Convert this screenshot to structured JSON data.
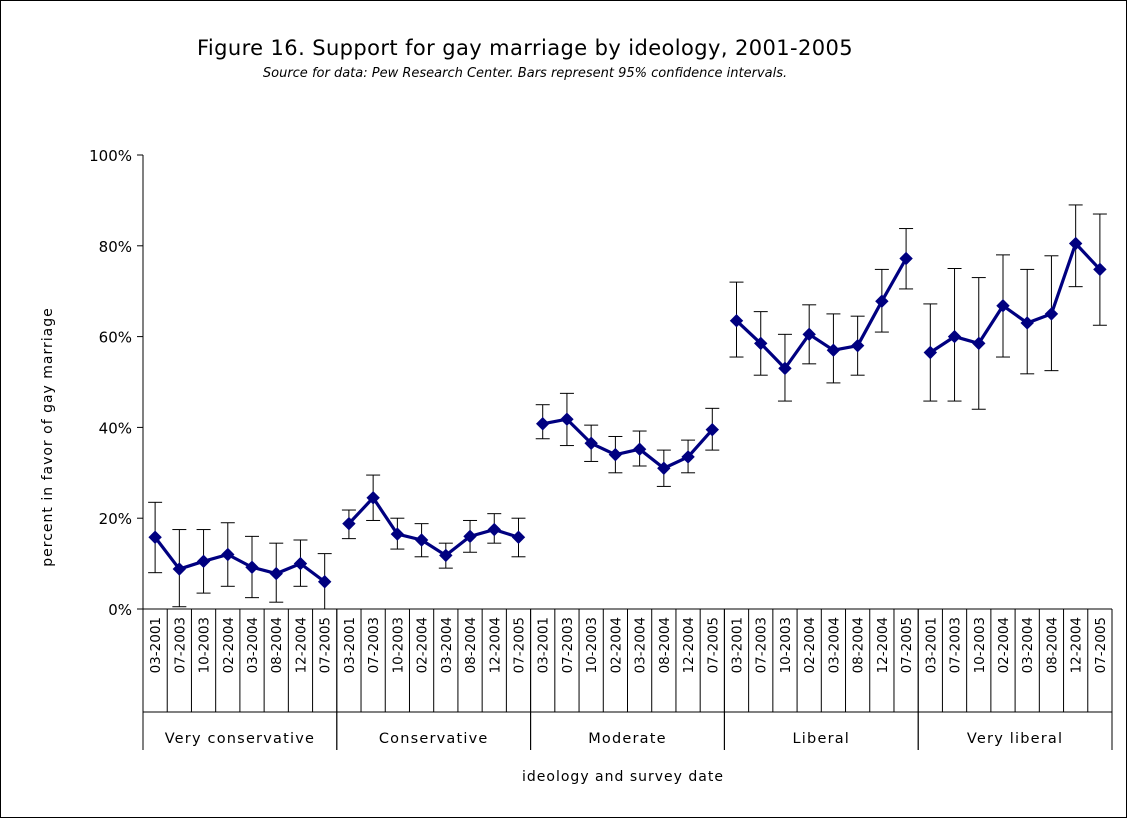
{
  "chart_data": {
    "type": "line",
    "title": "Figure 16.  Support for gay marriage by ideology, 2001-2005",
    "subtitle": "Source for data: Pew Research Center.  Bars represent 95% confidence intervals.",
    "xlabel": "ideology and survey date",
    "ylabel": "percent in favor of gay marriage",
    "ylim": [
      0,
      100
    ],
    "yticks": [
      "0%",
      "20%",
      "40%",
      "60%",
      "80%",
      "100%"
    ],
    "grid": false,
    "legend": "none",
    "error_bars": "95% confidence intervals",
    "dates": [
      "03-2001",
      "07-2003",
      "10-2003",
      "02-2004",
      "03-2004",
      "08-2004",
      "12-2004",
      "07-2005"
    ],
    "groups": [
      {
        "label": "Very conservative",
        "values": [
          15.8,
          8.8,
          10.5,
          12.0,
          9.2,
          7.8,
          10.0,
          6.0
        ],
        "lower": [
          8.0,
          0.5,
          3.5,
          5.0,
          2.5,
          1.5,
          5.0,
          0.0
        ],
        "upper": [
          23.5,
          17.5,
          17.5,
          19.0,
          16.0,
          14.5,
          15.2,
          12.2
        ]
      },
      {
        "label": "Conservative",
        "values": [
          18.8,
          24.5,
          16.5,
          15.2,
          11.8,
          16.0,
          17.5,
          15.8
        ],
        "lower": [
          15.5,
          19.5,
          13.2,
          11.5,
          9.0,
          12.5,
          14.5,
          11.5
        ],
        "upper": [
          21.8,
          29.5,
          20.0,
          18.8,
          14.5,
          19.5,
          21.0,
          20.0
        ]
      },
      {
        "label": "Moderate",
        "values": [
          40.8,
          41.8,
          36.5,
          34.0,
          35.2,
          31.0,
          33.5,
          39.5
        ],
        "lower": [
          37.5,
          36.0,
          32.5,
          30.0,
          31.5,
          27.0,
          30.0,
          35.0
        ],
        "upper": [
          45.0,
          47.5,
          40.5,
          38.0,
          39.2,
          35.0,
          37.2,
          44.2
        ]
      },
      {
        "label": "Liberal",
        "values": [
          63.5,
          58.5,
          53.0,
          60.5,
          57.0,
          58.0,
          67.8,
          77.2
        ],
        "lower": [
          55.5,
          51.5,
          45.8,
          54.0,
          49.8,
          51.5,
          61.0,
          70.5
        ],
        "upper": [
          72.0,
          65.5,
          60.5,
          67.0,
          65.0,
          64.5,
          74.8,
          83.8
        ]
      },
      {
        "label": "Very liberal",
        "values": [
          56.5,
          60.0,
          58.5,
          66.8,
          63.0,
          65.0,
          80.5,
          74.8
        ],
        "lower": [
          45.8,
          45.8,
          44.0,
          55.5,
          51.8,
          52.5,
          71.0,
          62.5
        ],
        "upper": [
          67.2,
          75.0,
          73.0,
          78.0,
          74.8,
          77.8,
          89.0,
          87.0
        ]
      }
    ]
  },
  "colors": {
    "series": "#000080",
    "axis": "#000000"
  }
}
